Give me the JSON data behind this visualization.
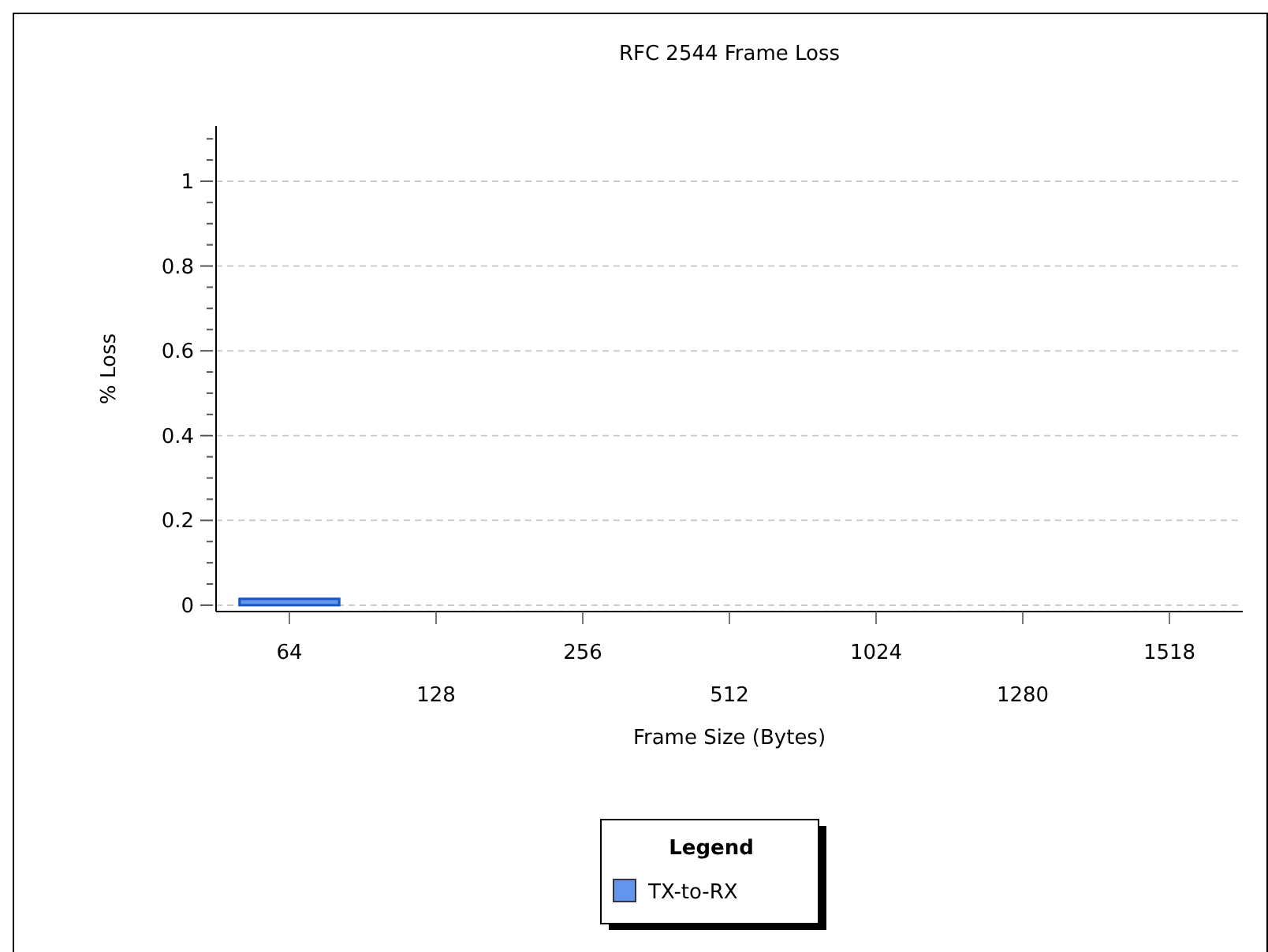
{
  "chart_data": {
    "type": "bar",
    "title": "RFC 2544 Frame Loss",
    "xlabel": "Frame Size (Bytes)",
    "ylabel": "% Loss",
    "legend_title": "Legend",
    "categories": [
      "64",
      "128",
      "256",
      "512",
      "1024",
      "1280",
      "1518"
    ],
    "series": [
      {
        "name": "TX-to-RX",
        "color": "#6495ed",
        "values": [
          0.015,
          0,
          0,
          0,
          0,
          0,
          0
        ]
      }
    ],
    "ylim": [
      -0.015,
      1.13
    ],
    "yticks": [
      0,
      {
        "value": 0.05,
        "label": null
      },
      {
        "value": 0.1,
        "label": null
      },
      {
        "value": 0.15,
        "label": null
      },
      0.2,
      {
        "value": 0.25,
        "label": null
      },
      {
        "value": 0.3,
        "label": null
      },
      {
        "value": 0.35,
        "label": null
      },
      0.4,
      {
        "value": 0.45,
        "label": null
      },
      {
        "value": 0.5,
        "label": null
      },
      {
        "value": 0.55,
        "label": null
      },
      0.6,
      {
        "value": 0.65,
        "label": null
      },
      {
        "value": 0.7,
        "label": null
      },
      {
        "value": 0.75,
        "label": null
      },
      0.8,
      {
        "value": 0.85,
        "label": null
      },
      {
        "value": 0.9,
        "label": null
      },
      {
        "value": 0.95,
        "label": null
      },
      1,
      {
        "value": 1.05,
        "label": null
      },
      {
        "value": 1.1,
        "label": null
      }
    ],
    "grid": "y",
    "legend": "bottom"
  }
}
